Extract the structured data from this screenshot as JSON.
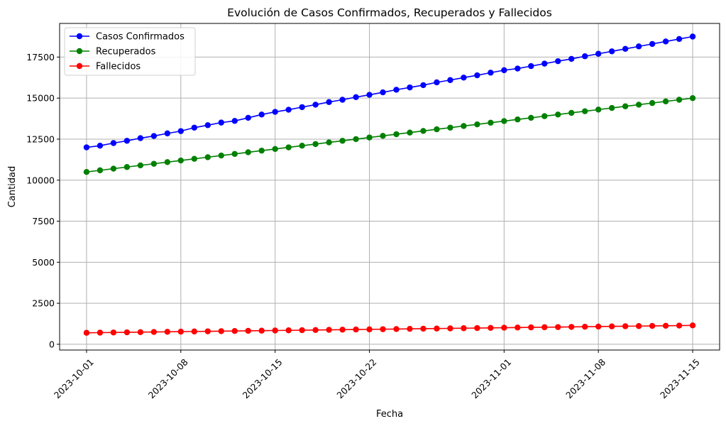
{
  "chart_data": {
    "type": "line",
    "title": "Evolución de Casos Confirmados, Recuperados y Fallecidos",
    "xlabel": "Fecha",
    "ylabel": "Cantidad",
    "x_start": "2023-10-01",
    "x_end": "2023-11-15",
    "xlim": [
      "2023-09-29",
      "2023-11-17"
    ],
    "ylim": [
      -350,
      19550
    ],
    "xticks": [
      "2023-10-01",
      "2023-10-08",
      "2023-10-15",
      "2023-10-22",
      "2023-11-01",
      "2023-11-08",
      "2023-11-15"
    ],
    "yticks": [
      0,
      2500,
      5000,
      7500,
      10000,
      12500,
      15000,
      17500
    ],
    "grid": true,
    "legend_position": "top-left",
    "series": [
      {
        "name": "Casos Confirmados",
        "color": "#0000ff",
        "values": [
          12000,
          12100,
          12260,
          12400,
          12560,
          12690,
          12850,
          12990,
          13200,
          13350,
          13510,
          13610,
          13800,
          14000,
          14160,
          14290,
          14450,
          14600,
          14760,
          14900,
          15060,
          15200,
          15350,
          15510,
          15650,
          15790,
          15960,
          16100,
          16250,
          16390,
          16550,
          16700,
          16800,
          16950,
          17100,
          17250,
          17390,
          17550,
          17700,
          17850,
          18000,
          18150,
          18300,
          18450,
          18600,
          18750
        ]
      },
      {
        "name": "Recuperados",
        "color": "#008000",
        "values": [
          10500,
          10600,
          10700,
          10800,
          10900,
          11000,
          11100,
          11200,
          11300,
          11400,
          11500,
          11600,
          11700,
          11800,
          11900,
          12000,
          12100,
          12200,
          12300,
          12400,
          12500,
          12600,
          12700,
          12800,
          12900,
          13000,
          13100,
          13200,
          13300,
          13400,
          13500,
          13600,
          13700,
          13800,
          13900,
          14000,
          14100,
          14200,
          14300,
          14400,
          14500,
          14600,
          14700,
          14800,
          14900,
          15000
        ]
      },
      {
        "name": "Fallecidos",
        "color": "#ff0000",
        "values": [
          700,
          710,
          720,
          730,
          740,
          750,
          760,
          770,
          780,
          790,
          800,
          810,
          820,
          830,
          840,
          850,
          860,
          870,
          880,
          890,
          900,
          910,
          920,
          930,
          940,
          950,
          960,
          970,
          980,
          990,
          1000,
          1010,
          1020,
          1030,
          1040,
          1050,
          1060,
          1070,
          1080,
          1090,
          1100,
          1110,
          1120,
          1130,
          1140,
          1150
        ]
      }
    ]
  }
}
